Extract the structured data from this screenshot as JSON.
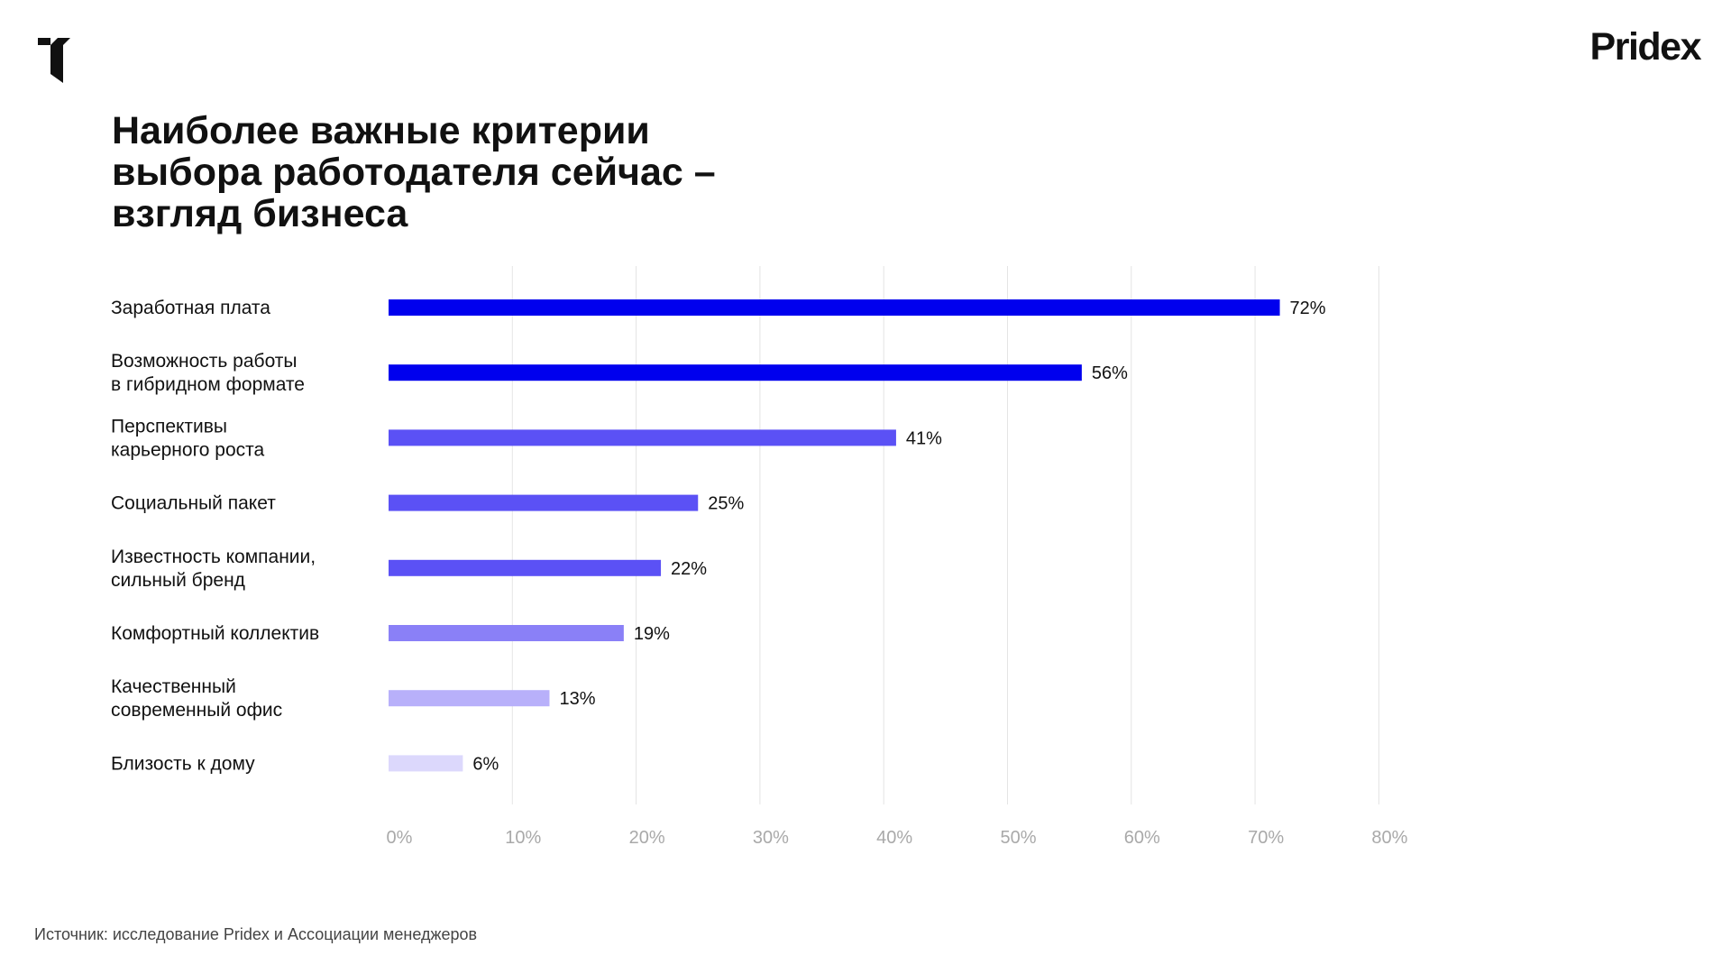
{
  "brand": {
    "name": "Pridex",
    "logo_icon": "pridex-mark-icon"
  },
  "title": "Наиболее важные критерии\nвыбора работодателя сейчас –\nвзгляд бизнеса",
  "source": "Источник: исследование Pridex и Ассоциации менеджеров",
  "chart_data": {
    "type": "bar",
    "orientation": "horizontal",
    "categories": [
      [
        "Заработная плата"
      ],
      [
        "Возможность работы",
        "в гибридном формате"
      ],
      [
        "Перспективы",
        "карьерного роста"
      ],
      [
        "Социальный пакет"
      ],
      [
        "Известность компании,",
        "сильный бренд"
      ],
      [
        "Комфортный коллектив"
      ],
      [
        "Качественный",
        "современный офис"
      ],
      [
        "Близость к дому"
      ]
    ],
    "values": [
      72,
      56,
      41,
      25,
      22,
      19,
      13,
      6
    ],
    "value_labels": [
      "72%",
      "56%",
      "41%",
      "25%",
      "22%",
      "19%",
      "13%",
      "6%"
    ],
    "bar_colors": [
      "#0000ee",
      "#0000ee",
      "#5b51f5",
      "#5b51f5",
      "#5b51f5",
      "#8a80f7",
      "#b8b0fa",
      "#dcd8fc"
    ],
    "xlim": [
      0,
      80
    ],
    "x_ticks": [
      0,
      10,
      20,
      30,
      40,
      50,
      60,
      70,
      80
    ],
    "x_tick_labels": [
      "0%",
      "10%",
      "20%",
      "30%",
      "40%",
      "50%",
      "60%",
      "70%",
      "80%"
    ],
    "grid": true,
    "grid_color": "#e4e4e4",
    "tick_color": "#a9a9a9"
  }
}
